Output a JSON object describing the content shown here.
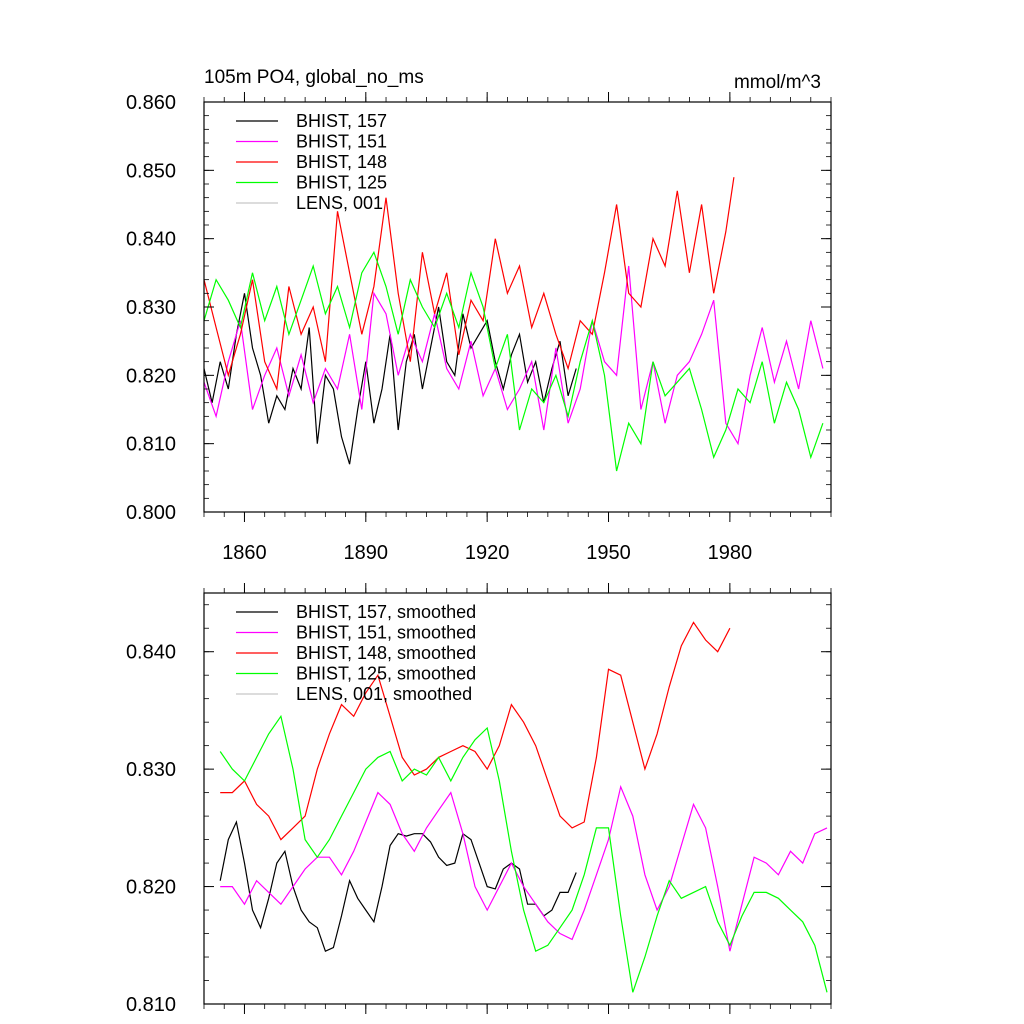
{
  "figure": {
    "title": "105m PO4, global_no_ms",
    "units": "mmol/m^3"
  },
  "chart_data": [
    {
      "type": "line",
      "panel": "top",
      "title": "105m PO4, global_no_ms",
      "units_label": "mmol/m^3",
      "xlim": [
        1850,
        2005
      ],
      "ylim": [
        0.8,
        0.86
      ],
      "xticks": [
        1860,
        1890,
        1920,
        1950,
        1980
      ],
      "xtick_labels": [
        "1860",
        "1890",
        "1920",
        "1950",
        "1980"
      ],
      "yticks": [
        0.8,
        0.81,
        0.82,
        0.83,
        0.84,
        0.85,
        0.86
      ],
      "ytick_labels": [
        "0.800",
        "0.810",
        "0.820",
        "0.830",
        "0.840",
        "0.850",
        "0.860"
      ],
      "legend_position": "top-left",
      "grid": false,
      "series": [
        {
          "name": "BHIST, 157",
          "color": "#000000",
          "x": [
            1850,
            1852,
            1854,
            1856,
            1858,
            1860,
            1862,
            1864,
            1866,
            1868,
            1870,
            1872,
            1874,
            1876,
            1878,
            1880,
            1882,
            1884,
            1886,
            1888,
            1890,
            1892,
            1894,
            1896,
            1898,
            1900,
            1902,
            1904,
            1906,
            1908,
            1910,
            1912,
            1914,
            1916,
            1918,
            1920,
            1922,
            1924,
            1926,
            1928,
            1930,
            1932,
            1934,
            1936,
            1938,
            1940,
            1942
          ],
          "y": [
            0.821,
            0.816,
            0.822,
            0.818,
            0.826,
            0.832,
            0.824,
            0.82,
            0.813,
            0.817,
            0.815,
            0.821,
            0.818,
            0.827,
            0.81,
            0.82,
            0.818,
            0.811,
            0.807,
            0.815,
            0.822,
            0.813,
            0.818,
            0.826,
            0.812,
            0.822,
            0.826,
            0.818,
            0.824,
            0.83,
            0.822,
            0.82,
            0.829,
            0.824,
            0.826,
            0.828,
            0.822,
            0.818,
            0.823,
            0.826,
            0.819,
            0.822,
            0.816,
            0.821,
            0.825,
            0.817,
            0.821
          ]
        },
        {
          "name": "BHIST, 151",
          "color": "#ff00ff",
          "x": [
            1850,
            1853,
            1856,
            1859,
            1862,
            1865,
            1868,
            1871,
            1874,
            1877,
            1880,
            1883,
            1886,
            1889,
            1892,
            1895,
            1898,
            1901,
            1904,
            1907,
            1910,
            1913,
            1916,
            1919,
            1922,
            1925,
            1928,
            1931,
            1934,
            1937,
            1940,
            1943,
            1946,
            1949,
            1952,
            1955,
            1958,
            1961,
            1964,
            1967,
            1970,
            1973,
            1976,
            1979,
            1982,
            1985,
            1988,
            1991,
            1994,
            1997,
            2000,
            2003
          ],
          "y": [
            0.819,
            0.814,
            0.822,
            0.828,
            0.815,
            0.82,
            0.824,
            0.817,
            0.823,
            0.816,
            0.821,
            0.818,
            0.826,
            0.815,
            0.832,
            0.829,
            0.82,
            0.826,
            0.822,
            0.829,
            0.821,
            0.818,
            0.825,
            0.817,
            0.821,
            0.815,
            0.818,
            0.822,
            0.812,
            0.824,
            0.813,
            0.818,
            0.828,
            0.822,
            0.82,
            0.836,
            0.815,
            0.822,
            0.813,
            0.82,
            0.822,
            0.826,
            0.831,
            0.813,
            0.81,
            0.82,
            0.827,
            0.819,
            0.825,
            0.818,
            0.828,
            0.821
          ]
        },
        {
          "name": "BHIST, 148",
          "color": "#ff0000",
          "x": [
            1850,
            1853,
            1856,
            1859,
            1862,
            1865,
            1868,
            1871,
            1874,
            1877,
            1880,
            1883,
            1886,
            1889,
            1892,
            1895,
            1898,
            1901,
            1904,
            1907,
            1910,
            1913,
            1916,
            1919,
            1922,
            1925,
            1928,
            1931,
            1934,
            1937,
            1940,
            1943,
            1946,
            1949,
            1952,
            1955,
            1958,
            1961,
            1964,
            1967,
            1970,
            1973,
            1976,
            1979,
            1981
          ],
          "y": [
            0.834,
            0.827,
            0.82,
            0.826,
            0.834,
            0.822,
            0.818,
            0.833,
            0.826,
            0.83,
            0.822,
            0.844,
            0.835,
            0.826,
            0.833,
            0.846,
            0.832,
            0.822,
            0.838,
            0.829,
            0.835,
            0.823,
            0.831,
            0.828,
            0.84,
            0.832,
            0.836,
            0.827,
            0.832,
            0.826,
            0.821,
            0.828,
            0.826,
            0.835,
            0.845,
            0.832,
            0.83,
            0.84,
            0.836,
            0.847,
            0.835,
            0.845,
            0.832,
            0.841,
            0.849
          ]
        },
        {
          "name": "BHIST, 125",
          "color": "#00ff00",
          "x": [
            1850,
            1853,
            1856,
            1859,
            1862,
            1865,
            1868,
            1871,
            1874,
            1877,
            1880,
            1883,
            1886,
            1889,
            1892,
            1895,
            1898,
            1901,
            1904,
            1907,
            1910,
            1913,
            1916,
            1919,
            1922,
            1925,
            1928,
            1931,
            1934,
            1937,
            1940,
            1943,
            1946,
            1949,
            1952,
            1955,
            1958,
            1961,
            1964,
            1967,
            1970,
            1973,
            1976,
            1979,
            1982,
            1985,
            1988,
            1991,
            1994,
            1997,
            2000,
            2003
          ],
          "y": [
            0.828,
            0.834,
            0.831,
            0.827,
            0.835,
            0.828,
            0.833,
            0.826,
            0.831,
            0.836,
            0.829,
            0.833,
            0.827,
            0.835,
            0.838,
            0.833,
            0.826,
            0.834,
            0.83,
            0.827,
            0.832,
            0.827,
            0.835,
            0.83,
            0.821,
            0.826,
            0.812,
            0.818,
            0.816,
            0.82,
            0.814,
            0.822,
            0.828,
            0.82,
            0.806,
            0.813,
            0.81,
            0.822,
            0.817,
            0.819,
            0.821,
            0.815,
            0.808,
            0.812,
            0.818,
            0.816,
            0.822,
            0.813,
            0.819,
            0.815,
            0.808,
            0.813
          ]
        },
        {
          "name": "LENS, 001",
          "color": "#c8c8c8",
          "x": [],
          "y": []
        }
      ]
    },
    {
      "type": "line",
      "panel": "bottom",
      "title": "",
      "xlim": [
        1850,
        2005
      ],
      "ylim": [
        0.81,
        0.845
      ],
      "xticks": [
        1860,
        1890,
        1920,
        1950,
        1980
      ],
      "yticks": [
        0.81,
        0.82,
        0.83,
        0.84
      ],
      "ytick_labels": [
        "0.810",
        "0.820",
        "0.830",
        "0.840"
      ],
      "legend_position": "top-left",
      "grid": false,
      "series": [
        {
          "name": "BHIST, 157, smoothed",
          "color": "#000000",
          "x": [
            1854,
            1856,
            1858,
            1860,
            1862,
            1864,
            1866,
            1868,
            1870,
            1872,
            1874,
            1876,
            1878,
            1880,
            1882,
            1884,
            1886,
            1888,
            1890,
            1892,
            1894,
            1896,
            1898,
            1900,
            1902,
            1904,
            1906,
            1908,
            1910,
            1912,
            1914,
            1916,
            1918,
            1920,
            1922,
            1924,
            1926,
            1928,
            1930,
            1932,
            1934,
            1936,
            1938,
            1940,
            1942
          ],
          "y": [
            0.8205,
            0.824,
            0.8255,
            0.822,
            0.818,
            0.8165,
            0.819,
            0.822,
            0.823,
            0.82,
            0.818,
            0.817,
            0.8165,
            0.8145,
            0.8148,
            0.8175,
            0.8205,
            0.819,
            0.818,
            0.817,
            0.82,
            0.8235,
            0.8245,
            0.8243,
            0.8245,
            0.8245,
            0.8238,
            0.8225,
            0.8218,
            0.822,
            0.8245,
            0.824,
            0.822,
            0.82,
            0.8198,
            0.8215,
            0.822,
            0.8215,
            0.8185,
            0.8185,
            0.8175,
            0.818,
            0.8195,
            0.8195,
            0.8212
          ]
        },
        {
          "name": "BHIST, 151, smoothed",
          "color": "#ff00ff",
          "x": [
            1854,
            1857,
            1860,
            1863,
            1866,
            1869,
            1872,
            1875,
            1878,
            1881,
            1884,
            1887,
            1890,
            1893,
            1896,
            1899,
            1902,
            1905,
            1908,
            1911,
            1914,
            1917,
            1920,
            1923,
            1926,
            1929,
            1932,
            1935,
            1938,
            1941,
            1944,
            1947,
            1950,
            1953,
            1956,
            1959,
            1962,
            1965,
            1968,
            1971,
            1974,
            1977,
            1980,
            1983,
            1986,
            1989,
            1992,
            1995,
            1998,
            2001,
            2004
          ],
          "y": [
            0.82,
            0.82,
            0.8185,
            0.8205,
            0.8195,
            0.8185,
            0.82,
            0.8215,
            0.8225,
            0.8225,
            0.821,
            0.823,
            0.8255,
            0.828,
            0.827,
            0.8245,
            0.823,
            0.825,
            0.8265,
            0.828,
            0.8245,
            0.82,
            0.818,
            0.82,
            0.822,
            0.82,
            0.8185,
            0.817,
            0.816,
            0.8155,
            0.818,
            0.821,
            0.824,
            0.8285,
            0.826,
            0.821,
            0.818,
            0.82,
            0.8235,
            0.827,
            0.825,
            0.82,
            0.8145,
            0.8185,
            0.8225,
            0.822,
            0.821,
            0.823,
            0.822,
            0.8245,
            0.825
          ]
        },
        {
          "name": "BHIST, 148, smoothed",
          "color": "#ff0000",
          "x": [
            1854,
            1857,
            1860,
            1863,
            1866,
            1869,
            1872,
            1875,
            1878,
            1881,
            1884,
            1887,
            1890,
            1893,
            1896,
            1899,
            1902,
            1905,
            1908,
            1911,
            1914,
            1917,
            1920,
            1923,
            1926,
            1929,
            1932,
            1935,
            1938,
            1941,
            1944,
            1947,
            1950,
            1953,
            1956,
            1959,
            1962,
            1965,
            1968,
            1971,
            1974,
            1977,
            1980
          ],
          "y": [
            0.828,
            0.828,
            0.829,
            0.827,
            0.826,
            0.824,
            0.825,
            0.826,
            0.83,
            0.833,
            0.8355,
            0.8345,
            0.8365,
            0.838,
            0.8345,
            0.831,
            0.8295,
            0.83,
            0.831,
            0.8315,
            0.832,
            0.8315,
            0.83,
            0.832,
            0.8355,
            0.834,
            0.832,
            0.829,
            0.826,
            0.825,
            0.8255,
            0.831,
            0.8385,
            0.838,
            0.834,
            0.83,
            0.833,
            0.837,
            0.8405,
            0.8425,
            0.841,
            0.84,
            0.842
          ]
        },
        {
          "name": "BHIST, 125, smoothed",
          "color": "#00ff00",
          "x": [
            1854,
            1857,
            1860,
            1863,
            1866,
            1869,
            1872,
            1875,
            1878,
            1881,
            1884,
            1887,
            1890,
            1893,
            1896,
            1899,
            1902,
            1905,
            1908,
            1911,
            1914,
            1917,
            1920,
            1923,
            1926,
            1929,
            1932,
            1935,
            1938,
            1941,
            1944,
            1947,
            1950,
            1953,
            1956,
            1959,
            1962,
            1965,
            1968,
            1971,
            1974,
            1977,
            1980,
            1983,
            1986,
            1989,
            1992,
            1995,
            1998,
            2001,
            2004
          ],
          "y": [
            0.8315,
            0.83,
            0.829,
            0.831,
            0.833,
            0.8345,
            0.83,
            0.824,
            0.8225,
            0.824,
            0.826,
            0.828,
            0.83,
            0.831,
            0.8315,
            0.829,
            0.83,
            0.8295,
            0.831,
            0.829,
            0.831,
            0.8325,
            0.8335,
            0.829,
            0.823,
            0.818,
            0.8145,
            0.815,
            0.8165,
            0.818,
            0.821,
            0.825,
            0.825,
            0.8175,
            0.811,
            0.814,
            0.8175,
            0.8205,
            0.819,
            0.8195,
            0.82,
            0.817,
            0.815,
            0.8175,
            0.8195,
            0.8195,
            0.819,
            0.818,
            0.817,
            0.815,
            0.811
          ]
        },
        {
          "name": "LENS, 001, smoothed",
          "color": "#c8c8c8",
          "x": [],
          "y": []
        }
      ]
    }
  ]
}
